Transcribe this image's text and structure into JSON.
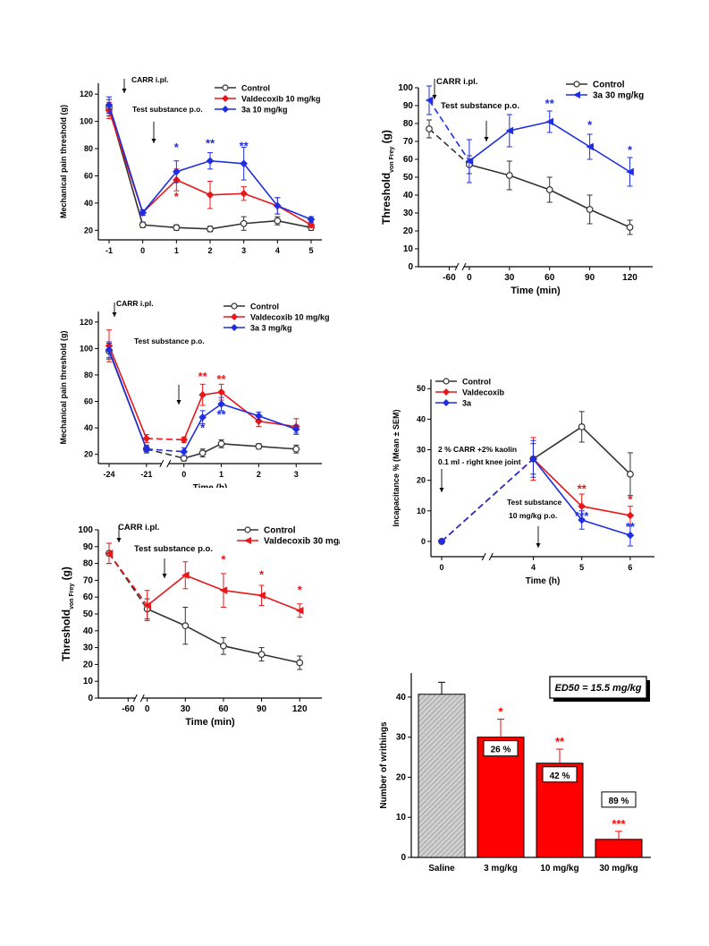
{
  "colors": {
    "control": "#333333",
    "valdecoxib": "#e8171a",
    "cmp3a": "#1e2ee0",
    "bar_red": "#ff0000",
    "bar_saline": "#bdbdbd"
  },
  "chart_data": [
    {
      "id": "p1",
      "type": "line",
      "ylabel": "Mechanical pain threshold (g)",
      "xlabel": "Time (h)",
      "xticks": [
        "-1",
        "0",
        "1",
        "2",
        "3",
        "4",
        "5"
      ],
      "yticks": [
        "20",
        "40",
        "60",
        "80",
        "100",
        "120"
      ],
      "ylim": [
        13,
        128
      ],
      "annotations": [
        "CARR i.pl.",
        "Test substance p.o."
      ],
      "legend": [
        "Control",
        "Valdecoxib 10 mg/kg",
        "3a          10 mg/kg"
      ],
      "series": [
        {
          "name": "Control",
          "color": "control",
          "marker": "circle",
          "x": [
            -1,
            0,
            1,
            2,
            3,
            4,
            5
          ],
          "y": [
            110,
            24,
            22,
            21,
            25,
            27,
            22
          ],
          "err": [
            6,
            2,
            2,
            2,
            5,
            3,
            2
          ]
        },
        {
          "name": "Valdecoxib 10 mg/kg",
          "color": "valdecoxib",
          "marker": "diamond",
          "x": [
            -1,
            0,
            1,
            2,
            3,
            4,
            5
          ],
          "y": [
            108,
            33,
            57,
            46,
            47,
            38,
            24
          ],
          "err": [
            6,
            2,
            8,
            10,
            5,
            6,
            2
          ]
        },
        {
          "name": "3a 10 mg/kg",
          "color": "cmp3a",
          "marker": "diamond",
          "x": [
            -1,
            0,
            1,
            2,
            3,
            4,
            5
          ],
          "y": [
            112,
            33,
            63,
            71,
            69,
            38,
            28
          ],
          "err": [
            6,
            2,
            8,
            6,
            12,
            6,
            2
          ]
        }
      ],
      "stars": [
        {
          "x": 1,
          "y": 78,
          "text": "*",
          "color": "cmp3a"
        },
        {
          "x": 1,
          "y": 42,
          "text": "*",
          "color": "valdecoxib"
        },
        {
          "x": 2,
          "y": 81,
          "text": "**",
          "color": "cmp3a"
        },
        {
          "x": 3,
          "y": 79,
          "text": "**",
          "color": "cmp3a"
        }
      ]
    },
    {
      "id": "p2",
      "type": "line",
      "ylabel": "Threshold",
      "ylabel_sub": "von Frey",
      "ylabel_unit": "(g)",
      "xlabel": "Time (min)",
      "xticks": [
        "-60",
        "0",
        "30",
        "60",
        "90",
        "120"
      ],
      "yticks": [
        "0",
        "10",
        "20",
        "30",
        "40",
        "50",
        "60",
        "70",
        "80",
        "90",
        "100"
      ],
      "ylim": [
        0,
        100
      ],
      "annotations": [
        "CARR i.pl.",
        "Test substance p.o."
      ],
      "legend": [
        "Control",
        "3a  30 mg/kg"
      ],
      "series": [
        {
          "name": "Control",
          "color": "control",
          "marker": "circle",
          "x": [
            -75,
            0,
            30,
            60,
            90,
            120
          ],
          "y": [
            77,
            57,
            51,
            43,
            32,
            22
          ],
          "err": [
            5,
            5,
            8,
            7,
            8,
            4
          ]
        },
        {
          "name": "3a 30 mg/kg",
          "color": "cmp3a",
          "marker": "triangle",
          "x": [
            -75,
            0,
            30,
            60,
            90,
            120
          ],
          "y": [
            93,
            59,
            76,
            81,
            67,
            53
          ],
          "err": [
            8,
            12,
            9,
            6,
            7,
            8
          ]
        }
      ],
      "stars": [
        {
          "x": 60,
          "y": 89,
          "text": "**",
          "color": "cmp3a"
        },
        {
          "x": 90,
          "y": 77,
          "text": "*",
          "color": "cmp3a"
        },
        {
          "x": 120,
          "y": 63,
          "text": "*",
          "color": "cmp3a"
        }
      ]
    },
    {
      "id": "p3",
      "type": "line",
      "ylabel": "Mechanical pain threshold (g)",
      "xlabel": "Time (h)",
      "xticks": [
        "-24",
        "-21",
        "0",
        "1",
        "2",
        "3"
      ],
      "yticks": [
        "20",
        "40",
        "60",
        "80",
        "100",
        "120"
      ],
      "ylim": [
        13,
        128
      ],
      "annotations": [
        "CARR i.pl.",
        "Test substance p.o."
      ],
      "legend": [
        "Control",
        "Valdecoxib  10 mg/kg",
        "3a              3 mg/kg"
      ],
      "series": [
        {
          "name": "Control",
          "color": "control",
          "marker": "circle",
          "x": [
            -24,
            -21,
            0,
            0.5,
            1,
            2,
            3
          ],
          "y": [
            98,
            24,
            17,
            21,
            28,
            26,
            24
          ],
          "err": [
            6,
            3,
            2,
            3,
            3,
            2,
            3
          ]
        },
        {
          "name": "Valdecoxib 10 mg/kg",
          "color": "valdecoxib",
          "marker": "diamond",
          "x": [
            -24,
            -21,
            0,
            0.5,
            1,
            2,
            3
          ],
          "y": [
            102,
            32,
            31,
            65,
            67,
            45,
            41
          ],
          "err": [
            12,
            3,
            2,
            8,
            6,
            4,
            6
          ]
        },
        {
          "name": "3a 3 mg/kg",
          "color": "cmp3a",
          "marker": "diamond",
          "x": [
            -24,
            -21,
            0,
            0.5,
            1,
            2,
            3
          ],
          "y": [
            99,
            24,
            22,
            48,
            58,
            49,
            39
          ],
          "err": [
            6,
            2,
            3,
            5,
            5,
            3,
            3
          ]
        }
      ],
      "stars": [
        {
          "x": 0.5,
          "y": 76,
          "text": "**",
          "color": "valdecoxib"
        },
        {
          "x": 1,
          "y": 74,
          "text": "**",
          "color": "valdecoxib"
        },
        {
          "x": 0.5,
          "y": 37,
          "text": "*",
          "color": "cmp3a"
        },
        {
          "x": 1,
          "y": 47,
          "text": "**",
          "color": "cmp3a"
        }
      ]
    },
    {
      "id": "p4",
      "type": "line",
      "ylabel": "Incapacitance % (Mean ± SEM)",
      "xlabel": "Time (h)",
      "xticks": [
        "0",
        "4",
        "5",
        "6"
      ],
      "yticks": [
        "0",
        "10",
        "20",
        "30",
        "40",
        "50"
      ],
      "ylim": [
        -5,
        53
      ],
      "annotations": [
        "2 % CARR +2% kaolin",
        "0.1 ml - right knee joint",
        "Test substance",
        "10 mg/kg p.o."
      ],
      "legend": [
        "Control",
        "Valdecoxib",
        "3a"
      ],
      "series": [
        {
          "name": "Control",
          "color": "control",
          "marker": "circle",
          "x": [
            0,
            4,
            5,
            6
          ],
          "y": [
            0,
            27,
            37.5,
            22
          ],
          "err": [
            0,
            5,
            5,
            7
          ]
        },
        {
          "name": "Valdecoxib",
          "color": "valdecoxib",
          "marker": "diamond",
          "x": [
            0,
            4,
            5,
            6
          ],
          "y": [
            0,
            27,
            11.5,
            8.5
          ],
          "err": [
            0,
            7,
            4,
            3
          ]
        },
        {
          "name": "3a",
          "color": "cmp3a",
          "marker": "diamond",
          "x": [
            0,
            4,
            5,
            6
          ],
          "y": [
            0,
            27,
            7,
            2
          ],
          "err": [
            0,
            6,
            3,
            3.5
          ]
        }
      ],
      "stars": [
        {
          "x": 5,
          "y": 16,
          "text": "**",
          "color": "valdecoxib"
        },
        {
          "x": 6,
          "y": 12.5,
          "text": "*",
          "color": "valdecoxib"
        },
        {
          "x": 5,
          "y": 7,
          "text": "***",
          "color": "cmp3a"
        },
        {
          "x": 6,
          "y": 3.5,
          "text": "**",
          "color": "cmp3a"
        }
      ]
    },
    {
      "id": "p5",
      "type": "line",
      "ylabel": "Threshold",
      "ylabel_sub": "von Frey",
      "ylabel_unit": "(g)",
      "xlabel": "Time (min)",
      "xticks": [
        "-60",
        "0",
        "30",
        "60",
        "90",
        "120"
      ],
      "yticks": [
        "0",
        "10",
        "20",
        "30",
        "40",
        "50",
        "60",
        "70",
        "80",
        "90",
        "100"
      ],
      "ylim": [
        0,
        100
      ],
      "annotations": [
        "CARR i.pl.",
        "Test substance p.o."
      ],
      "legend": [
        "Control",
        "Valdecoxib 30 mg/kg"
      ],
      "series": [
        {
          "name": "Control",
          "color": "control",
          "marker": "circle",
          "x": [
            -75,
            0,
            30,
            60,
            90,
            120
          ],
          "y": [
            86,
            53,
            43,
            31,
            26,
            21
          ],
          "err": [
            6,
            6,
            11,
            5,
            4,
            4
          ]
        },
        {
          "name": "Valdecoxib 30 mg/kg",
          "color": "valdecoxib",
          "marker": "triangle",
          "x": [
            -75,
            0,
            30,
            60,
            90,
            120
          ],
          "y": [
            86,
            55,
            73,
            64,
            61,
            52
          ],
          "err": [
            6,
            9,
            8,
            10,
            6,
            4
          ]
        }
      ],
      "stars": [
        {
          "x": 60,
          "y": 80,
          "text": "*",
          "color": "valdecoxib"
        },
        {
          "x": 90,
          "y": 71,
          "text": "*",
          "color": "valdecoxib"
        },
        {
          "x": 120,
          "y": 62,
          "text": "*",
          "color": "valdecoxib"
        }
      ]
    },
    {
      "id": "p6",
      "type": "bar",
      "ylabel": "Number of writhings",
      "categories": [
        "Saline",
        "3 mg/kg",
        "10 mg/kg",
        "30 mg/kg"
      ],
      "values": [
        40.7,
        30,
        23.5,
        4.5
      ],
      "err": [
        3,
        4.5,
        3.5,
        2
      ],
      "yticks": [
        "0",
        "10",
        "20",
        "30",
        "40"
      ],
      "ylim": [
        0,
        46
      ],
      "inhibition": [
        "",
        "26 %",
        "42 %",
        "89 %"
      ],
      "stars": [
        "",
        "*",
        "**",
        "***"
      ],
      "ed50": "ED50 = 15.5 mg/kg"
    }
  ]
}
